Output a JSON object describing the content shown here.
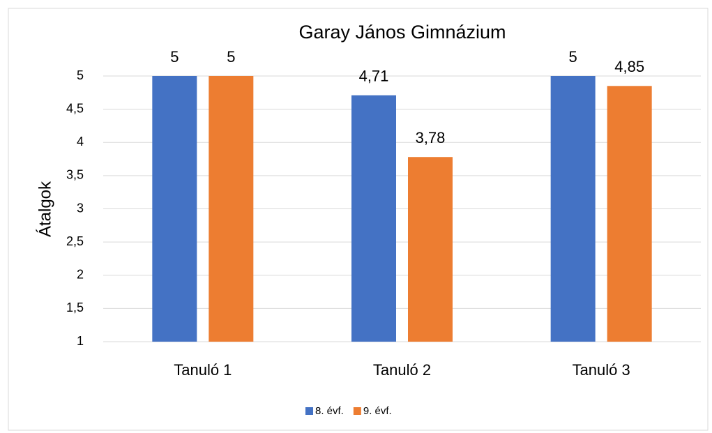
{
  "chart_data": {
    "type": "bar",
    "title": "Garay János Gimnázium",
    "y_label": "Átalgok",
    "categories": [
      "Tanuló 1",
      "Tanuló 2",
      "Tanuló 3"
    ],
    "series": [
      {
        "name": "8. évf.",
        "color": "#4472c4",
        "values": [
          5,
          4.71,
          5
        ],
        "value_labels": [
          "5",
          "4,71",
          "5"
        ]
      },
      {
        "name": "9. évf.",
        "color": "#ed7d31",
        "values": [
          5,
          3.78,
          4.85
        ],
        "value_labels": [
          "5",
          "3,78",
          "4,85"
        ]
      }
    ],
    "ylim": [
      1,
      5
    ],
    "yticks": [
      1,
      {
        "value": 1.5,
        "label": "1,5"
      },
      2,
      {
        "value": 2.5,
        "label": "2,5"
      },
      3,
      {
        "value": 3.5,
        "label": "3,5"
      },
      4,
      {
        "value": 4.5,
        "label": "4,5"
      },
      5
    ],
    "grid": true,
    "legend": "bottom"
  }
}
